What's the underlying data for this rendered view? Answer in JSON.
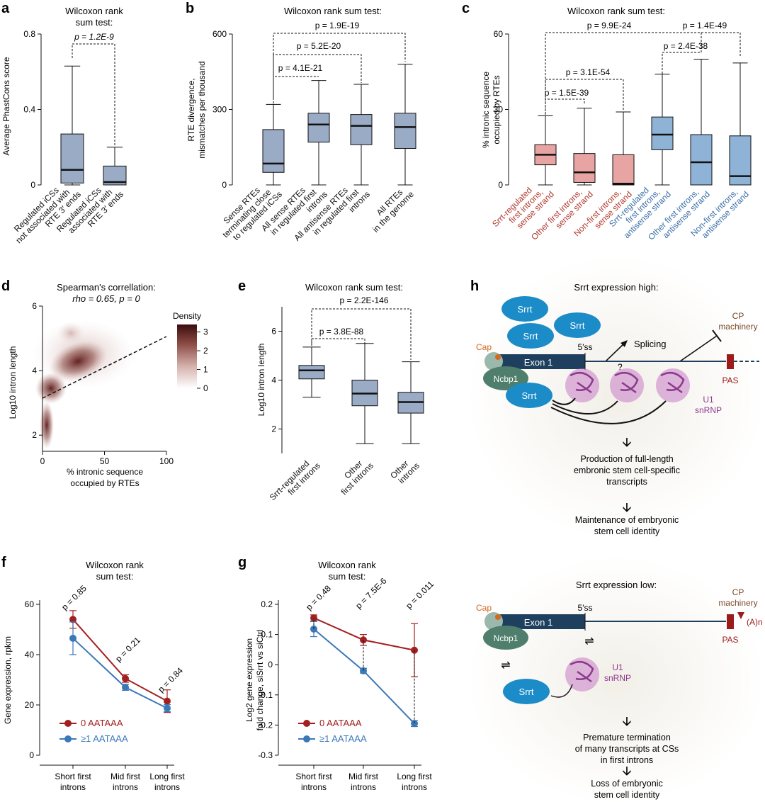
{
  "panels": {
    "a": {
      "letter": "a",
      "title": [
        "Wilcoxon rank",
        "sum test:"
      ],
      "ylabel": "Average PhastCons score",
      "ticks": [
        "0",
        "0.4",
        "0.8"
      ],
      "pvals": [
        "p = 1.2E-9"
      ],
      "xlabels": [
        [
          "Regulated iCSs",
          "not associated with",
          "RTE 3′ ends"
        ],
        [
          "Regulated iCSs",
          "associated with",
          "RTE 3′ ends"
        ]
      ]
    },
    "b": {
      "letter": "b",
      "title": [
        "Wilcoxon rank sum test:"
      ],
      "ylabel": [
        "RTE divergence,",
        "mismatches per thousand"
      ],
      "ticks": [
        "0",
        "300",
        "600"
      ],
      "pvals": [
        "p = 4.1E-21",
        "p = 5.2E-20",
        "p = 1.9E-19"
      ],
      "xlabels": [
        [
          "Sense RTEs",
          "terminating close",
          "to regulated iCSs"
        ],
        [
          "All sense RTEs",
          "in regulated first",
          "introns"
        ],
        [
          "All antisense RTEs",
          "in regulated first",
          "introns"
        ],
        [
          "All RTEs",
          "in the genome"
        ]
      ]
    },
    "c": {
      "letter": "c",
      "title": [
        "Wilcoxon rank sum test:"
      ],
      "ylabel": [
        "% intronic sequence",
        "occupied by RTEs"
      ],
      "ticks": [
        "0",
        "30",
        "60"
      ],
      "pvals": [
        "p = 1.5E-39",
        "p = 3.1E-54",
        "p = 9.9E-24",
        "p = 2.4E-38",
        "p = 1.4E-49"
      ],
      "xlabels": [
        [
          "Srrt-regulated",
          "first introns,",
          "sense strand"
        ],
        [
          "Other first introns,",
          "sense strand"
        ],
        [
          "Non-first introns,",
          "sense strand"
        ],
        [
          "Srrt-regulated",
          "first introns,",
          "antisense strand"
        ],
        [
          "Other first introns,",
          "antisense strand"
        ],
        [
          "Non-first introns,",
          "antisense strand"
        ]
      ]
    },
    "d": {
      "letter": "d",
      "title": [
        "Spearman's correllation:",
        "rho = 0.65, p = 0"
      ],
      "ylabel": "Log10 intron length",
      "xlabel": [
        "% intronic sequence",
        "occupied by RTEs"
      ],
      "xticks": [
        "0",
        "50",
        "100"
      ],
      "yticks": [
        "2",
        "4",
        "6"
      ],
      "legend_title": "Density",
      "legend_ticks": [
        "0",
        "1",
        "2",
        "3"
      ]
    },
    "e": {
      "letter": "e",
      "title": [
        "Wilcoxon rank sum test:"
      ],
      "ylabel": "Log10 intron length",
      "ticks": [
        "2",
        "4",
        "6"
      ],
      "pvals": [
        "p = 3.8E-88",
        "p = 2.2E-146"
      ],
      "xlabels": [
        [
          "Srrt-regulated",
          "first introns"
        ],
        [
          "Other",
          "first introns"
        ],
        [
          "Other",
          "introns"
        ]
      ]
    },
    "f": {
      "letter": "f",
      "title": [
        "Wilcoxon rank",
        "sum test:"
      ],
      "ylabel": "Gene expression, rpkm",
      "ticks": [
        "0",
        "20",
        "40",
        "60"
      ],
      "pvals": [
        "p = 0.85",
        "p = 0.21",
        "p = 0.84"
      ],
      "xlabels": [
        [
          "Short first",
          "introns"
        ],
        [
          "Mid first",
          "introns"
        ],
        [
          "Long first",
          "introns"
        ]
      ]
    },
    "g": {
      "letter": "g",
      "title": [
        "Wilcoxon rank",
        "sum test:"
      ],
      "ylabel": [
        "Log2 gene expression",
        "fold change, siSrrt vs siCtrl"
      ],
      "ticks": [
        "-0.3",
        "-0.2",
        "-0.1",
        "0",
        "0.1",
        "0.2"
      ],
      "pvals": [
        "p = 0.48",
        "p = 7.5E-6",
        "p = 0.011"
      ],
      "xlabels": [
        [
          "Short first",
          "introns"
        ],
        [
          "Mid first",
          "introns"
        ],
        [
          "Long first",
          "introns"
        ]
      ]
    },
    "h": {
      "letter": "h",
      "top_title": "Srrt expression high:",
      "bottom_title": "Srrt expression low:",
      "srrt": "Srrt",
      "cap": "Cap",
      "exon": "Exon 1",
      "ncbp": "Ncbp1",
      "ss": "5′ss",
      "splicing": "Splicing",
      "q": "?",
      "cp": [
        "CP",
        "machinery"
      ],
      "pas": "PAS",
      "u1": [
        "U1",
        "snRNP"
      ],
      "an": "(A)n",
      "top_steps": [
        [
          "Production of full-length",
          "embronic stem cell-specific",
          "transcripts"
        ],
        [
          "Maintenance of embryonic",
          "stem cell identity"
        ]
      ],
      "bottom_steps": [
        [
          "Premature termination",
          "of many transcripts at CSs",
          "in first introns"
        ],
        [
          "Loss of embryonic",
          "stem cell identity"
        ]
      ]
    }
  },
  "colors": {
    "box_blue": "#9aabc6",
    "box_pink": "#e8a3a3",
    "box_light": "#8fb3d6",
    "red": "#a32020",
    "blue": "#3b78b8",
    "srrt": "#1c8cc8",
    "exon": "#1e3f5e",
    "ncbp": "#4f7f6c",
    "u1": "#8b3a8c",
    "pas": "#9b1a1a",
    "cap": "#d2691e",
    "text_red": "#b03a2e",
    "text_blue": "#3b6fa8"
  },
  "chart_data": [
    {
      "id": "a",
      "type": "box",
      "ylim": [
        0,
        0.8
      ],
      "boxes": [
        {
          "label": "Regulated iCSs not associated with RTE 3′ ends",
          "whislo": 0.0,
          "q1": 0.01,
          "med": 0.08,
          "q3": 0.27,
          "whishi": 0.63
        },
        {
          "label": "Regulated iCSs associated with RTE 3′ ends",
          "whislo": 0.0,
          "q1": 0.0,
          "med": 0.015,
          "q3": 0.1,
          "whishi": 0.2
        }
      ]
    },
    {
      "id": "b",
      "type": "box",
      "ylim": [
        0,
        600
      ],
      "boxes": [
        {
          "label": "Sense RTEs terminating close to regulated iCSs",
          "whislo": 0,
          "q1": 50,
          "med": 85,
          "q3": 220,
          "whishi": 320
        },
        {
          "label": "All sense RTEs in regulated first introns",
          "whislo": 0,
          "q1": 170,
          "med": 240,
          "q3": 285,
          "whishi": 415
        },
        {
          "label": "All antisense RTEs in regulated first introns",
          "whislo": 0,
          "q1": 160,
          "med": 235,
          "q3": 280,
          "whishi": 400
        },
        {
          "label": "All RTEs in the genome",
          "whislo": 0,
          "q1": 145,
          "med": 230,
          "q3": 285,
          "whishi": 480
        }
      ]
    },
    {
      "id": "c",
      "type": "box",
      "ylim": [
        0,
        60
      ],
      "boxes": [
        {
          "label": "Srrt-regulated first introns, sense strand",
          "whislo": 0,
          "q1": 8,
          "med": 12,
          "q3": 16,
          "whishi": 27.5
        },
        {
          "label": "Other first introns, sense strand",
          "whislo": 0,
          "q1": 1,
          "med": 5,
          "q3": 12.5,
          "whishi": 30.5
        },
        {
          "label": "Non-first introns, sense strand",
          "whislo": 0,
          "q1": 0,
          "med": 0.5,
          "q3": 12,
          "whishi": 29
        },
        {
          "label": "Srrt-regulated first introns, antisense strand",
          "whislo": 0,
          "q1": 14,
          "med": 20,
          "q3": 27,
          "whishi": 44
        },
        {
          "label": "Other first introns, antisense strand",
          "whislo": 0,
          "q1": 0,
          "med": 9,
          "q3": 20,
          "whishi": 50
        },
        {
          "label": "Non-first introns, antisense strand",
          "whislo": 0,
          "q1": 0,
          "med": 3.5,
          "q3": 19.5,
          "whishi": 48.5
        }
      ]
    },
    {
      "id": "d",
      "type": "heatmap",
      "xlim": [
        0,
        100
      ],
      "ylim": [
        1.5,
        6
      ],
      "legend": {
        "title": "Density",
        "ticks": [
          0,
          1,
          2,
          3
        ]
      },
      "fit_line": {
        "x": [
          0,
          100
        ],
        "y": [
          3.05,
          5.1
        ]
      }
    },
    {
      "id": "e",
      "type": "box",
      "ylim": [
        1,
        7
      ],
      "boxes": [
        {
          "label": "Srrt-regulated first introns",
          "whislo": 3.3,
          "q1": 4.05,
          "med": 4.4,
          "q3": 4.6,
          "whishi": 5.35
        },
        {
          "label": "Other first introns",
          "whislo": 1.4,
          "q1": 2.95,
          "med": 3.45,
          "q3": 4.0,
          "whishi": 5.5
        },
        {
          "label": "Other introns",
          "whislo": 1.4,
          "q1": 2.65,
          "med": 3.1,
          "q3": 3.5,
          "whishi": 4.75
        }
      ]
    },
    {
      "id": "f",
      "type": "line",
      "ylim": [
        0,
        60
      ],
      "categories": [
        "Short first introns",
        "Mid first introns",
        "Long first introns"
      ],
      "series": [
        {
          "name": "0 AATAAA",
          "values": [
            54,
            30.5,
            21.5
          ],
          "err": [
            3.5,
            1.5,
            4.5
          ]
        },
        {
          "name": "≥1 AATAAA",
          "values": [
            46.5,
            27,
            18.7
          ],
          "err": [
            6.5,
            1.2,
            1.4
          ]
        }
      ]
    },
    {
      "id": "g",
      "type": "line",
      "ylim": [
        -0.3,
        0.2
      ],
      "categories": [
        "Short first introns",
        "Mid first introns",
        "Long first introns"
      ],
      "series": [
        {
          "name": "0 AATAAA",
          "values": [
            0.155,
            0.082,
            0.048
          ],
          "err": [
            0.01,
            0.018,
            0.088
          ]
        },
        {
          "name": "≥1 AATAAA",
          "values": [
            0.118,
            -0.02,
            -0.195
          ],
          "err": [
            0.025,
            0.008,
            0.01
          ]
        }
      ]
    }
  ]
}
